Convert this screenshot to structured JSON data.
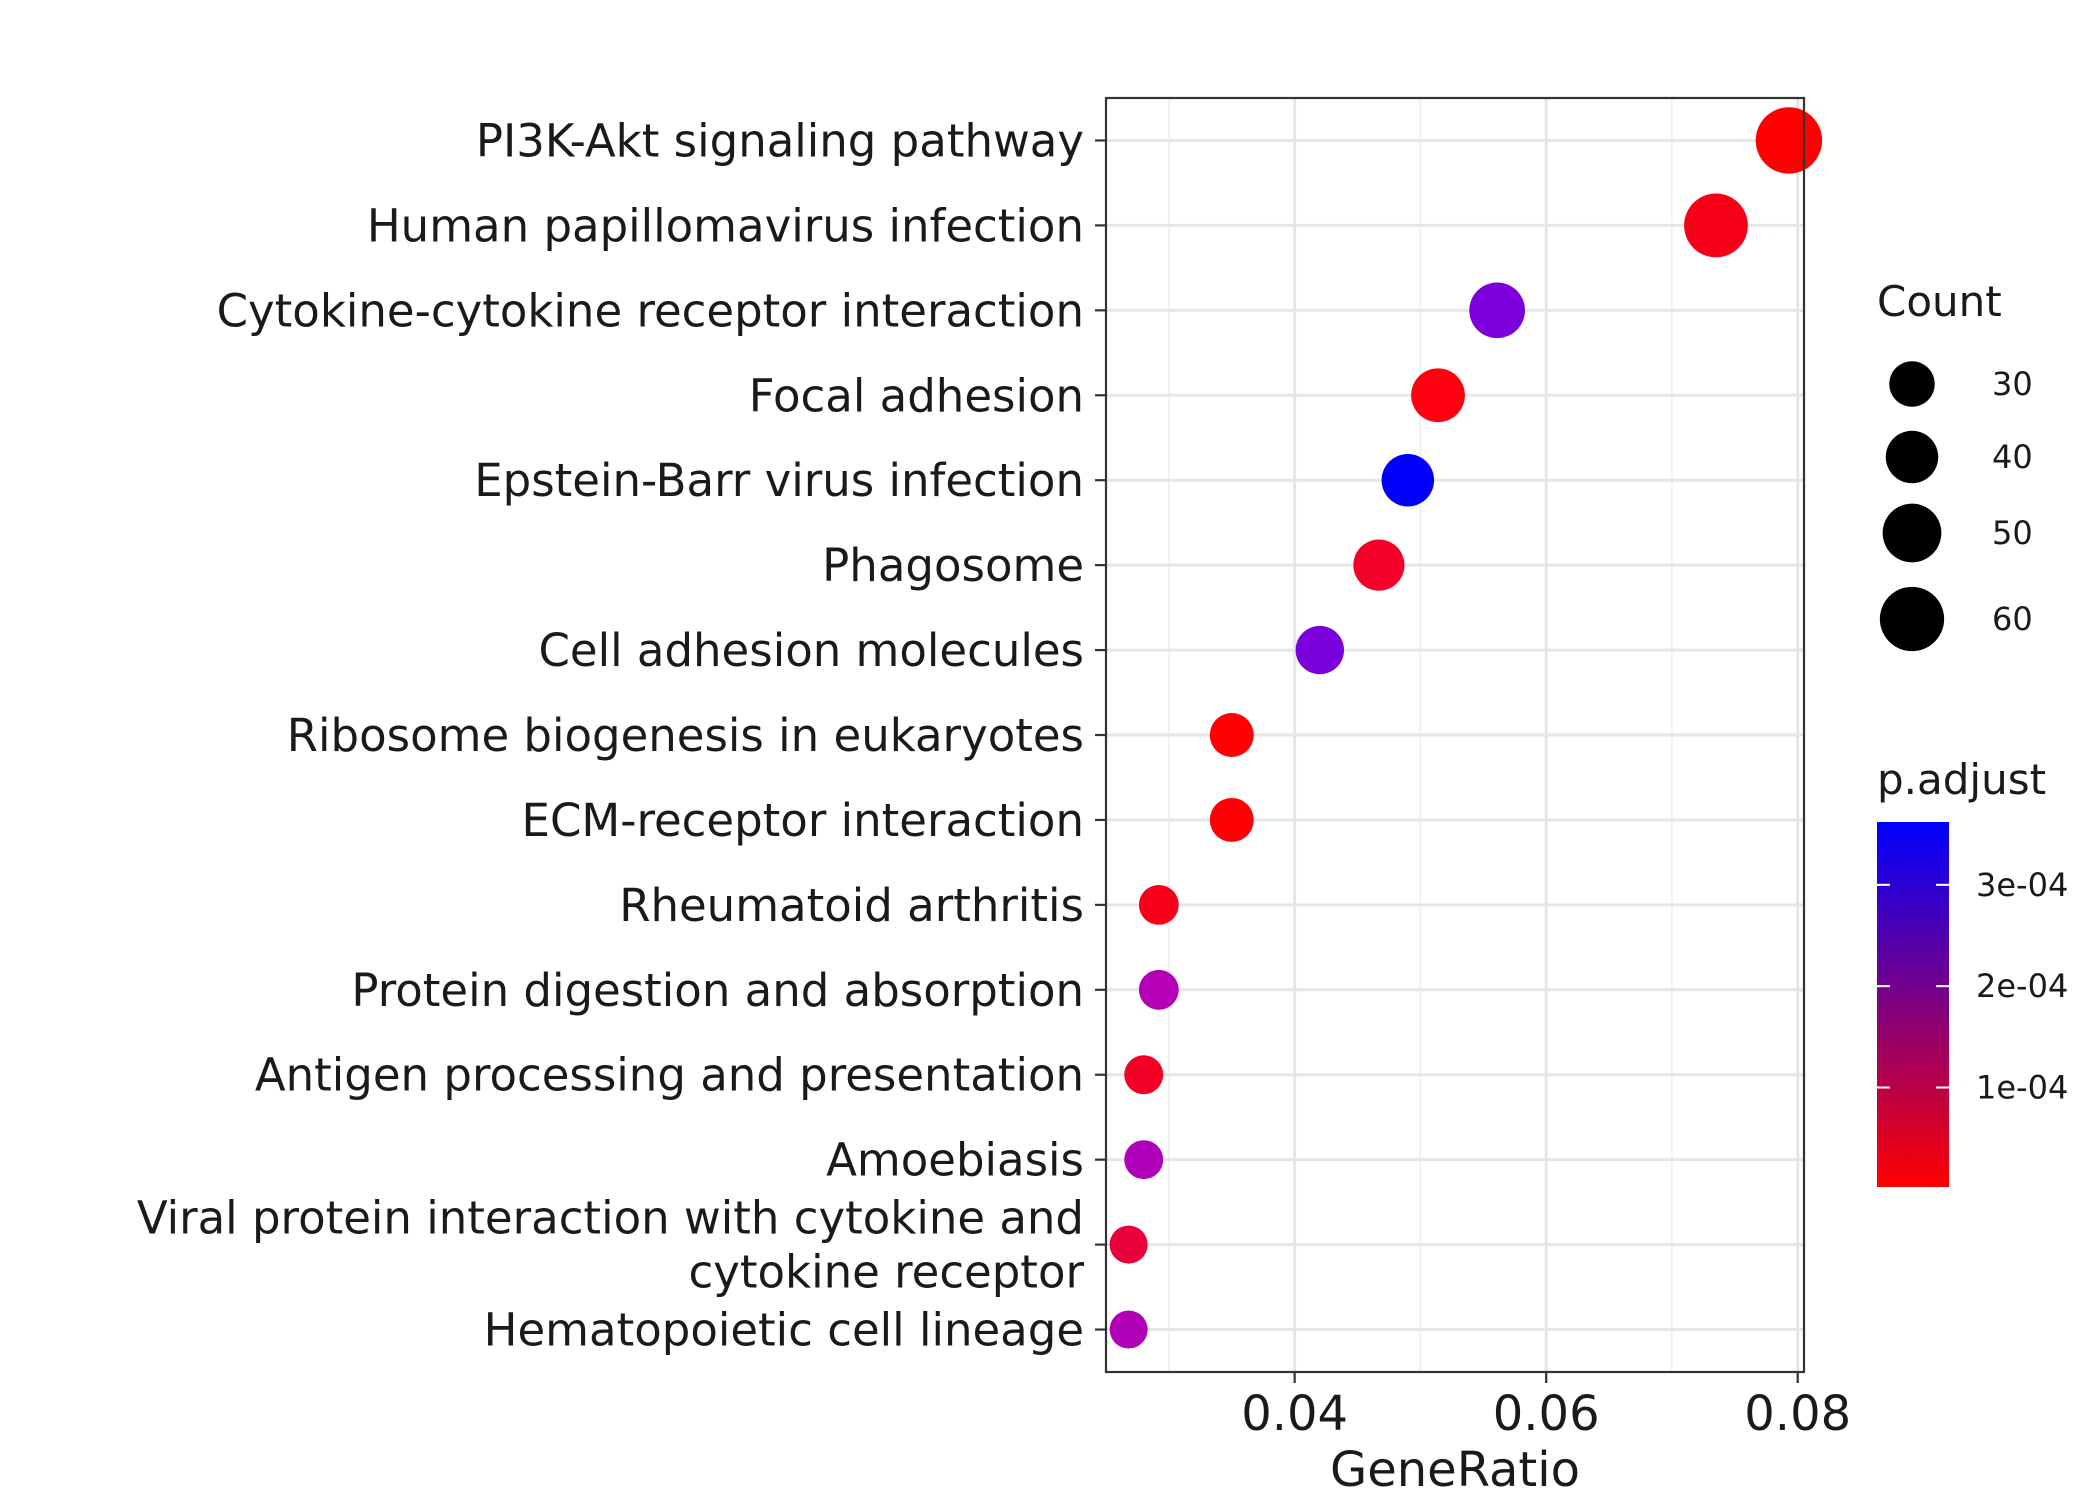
{
  "chart_data": {
    "type": "scatter",
    "xlabel": "GeneRatio",
    "ylabel": "",
    "xlim": [
      0.025,
      0.0805
    ],
    "x_ticks": [
      0.04,
      0.06,
      0.08
    ],
    "x_tick_labels": [
      "0.04",
      "0.06",
      "0.08"
    ],
    "grid": true,
    "points": [
      {
        "label": [
          "PI3K-Akt signaling pathway"
        ],
        "x": 0.0793,
        "count": 64,
        "color": "#FF0000"
      },
      {
        "label": [
          "Human papillomavirus infection"
        ],
        "x": 0.0735,
        "count": 59,
        "color": "#F70017"
      },
      {
        "label": [
          "Cytokine-cytokine receptor interaction"
        ],
        "x": 0.0561,
        "count": 45,
        "color": "#7B00DC"
      },
      {
        "label": [
          "Focal adhesion"
        ],
        "x": 0.0514,
        "count": 42,
        "color": "#FF0010"
      },
      {
        "label": [
          "Epstein-Barr virus infection"
        ],
        "x": 0.049,
        "count": 40,
        "color": "#0000FF"
      },
      {
        "label": [
          "Phagosome"
        ],
        "x": 0.0467,
        "count": 38,
        "color": "#F40028"
      },
      {
        "label": [
          "Cell adhesion molecules"
        ],
        "x": 0.042,
        "count": 34,
        "color": "#7A00DC"
      },
      {
        "label": [
          "Ribosome biogenesis in eukaryotes"
        ],
        "x": 0.035,
        "count": 28,
        "color": "#FF0004"
      },
      {
        "label": [
          "ECM-receptor interaction"
        ],
        "x": 0.035,
        "count": 28,
        "color": "#FF0005"
      },
      {
        "label": [
          "Rheumatoid arthritis"
        ],
        "x": 0.0292,
        "count": 23,
        "color": "#F8001A"
      },
      {
        "label": [
          "Protein digestion and absorption"
        ],
        "x": 0.0292,
        "count": 23,
        "color": "#B400B6"
      },
      {
        "label": [
          "Antigen processing and presentation"
        ],
        "x": 0.028,
        "count": 22,
        "color": "#F40026"
      },
      {
        "label": [
          "Amoebiasis"
        ],
        "x": 0.028,
        "count": 22,
        "color": "#B000BA"
      },
      {
        "label": [
          "Viral protein interaction with cytokine and",
          "cytokine receptor"
        ],
        "x": 0.0268,
        "count": 21,
        "color": "#E9003A"
      },
      {
        "label": [
          "Hematopoietic cell lineage"
        ],
        "x": 0.0268,
        "count": 21,
        "color": "#B200B8"
      }
    ],
    "size_legend": {
      "title": "Count",
      "values": [
        30,
        40,
        50,
        60
      ],
      "labels": [
        "30",
        "40",
        "50",
        "60"
      ]
    },
    "color_legend": {
      "title": "p.adjust",
      "gradient": [
        "#FF0000",
        "#0000FF"
      ],
      "range": [
        1.8e-06,
        0.000362
      ],
      "ticks": [
        0.0001,
        0.0002,
        0.0003
      ],
      "labels": [
        "1e-04",
        "2e-04",
        "3e-04"
      ]
    }
  }
}
